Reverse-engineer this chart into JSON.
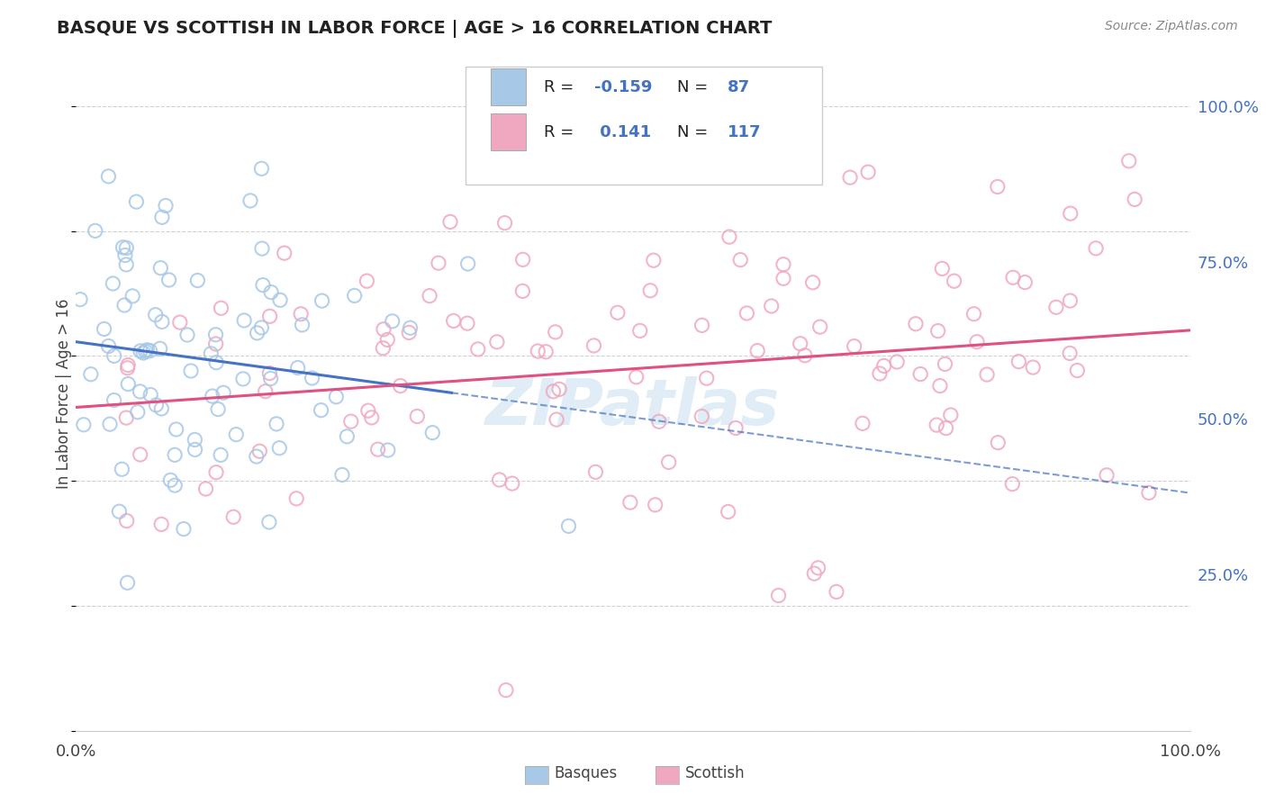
{
  "title": "BASQUE VS SCOTTISH IN LABOR FORCE | AGE > 16 CORRELATION CHART",
  "source_text": "Source: ZipAtlas.com",
  "ylabel": "In Labor Force | Age > 16",
  "basque_R": -0.159,
  "basque_N": 87,
  "scottish_R": 0.141,
  "scottish_N": 117,
  "basque_color": "#a8c8e8",
  "scottish_color": "#f0a8c0",
  "basque_line_color": "#4472c4",
  "scottish_line_color": "#e05080",
  "watermark_color": "#c8ddf0",
  "background_color": "#ffffff",
  "grid_color": "#cccccc",
  "title_color": "#222222",
  "right_tick_color": "#4472c4",
  "legend_text_color": "#4472c4",
  "legend_r_color": "#4472c4",
  "xlim": [
    0.0,
    1.0
  ],
  "ylim": [
    0.0,
    1.08
  ],
  "yticks": [
    0.25,
    0.5,
    0.75,
    1.0
  ],
  "xticks": [
    0.0,
    1.0
  ],
  "basque_seed": 42,
  "scottish_seed": 99
}
